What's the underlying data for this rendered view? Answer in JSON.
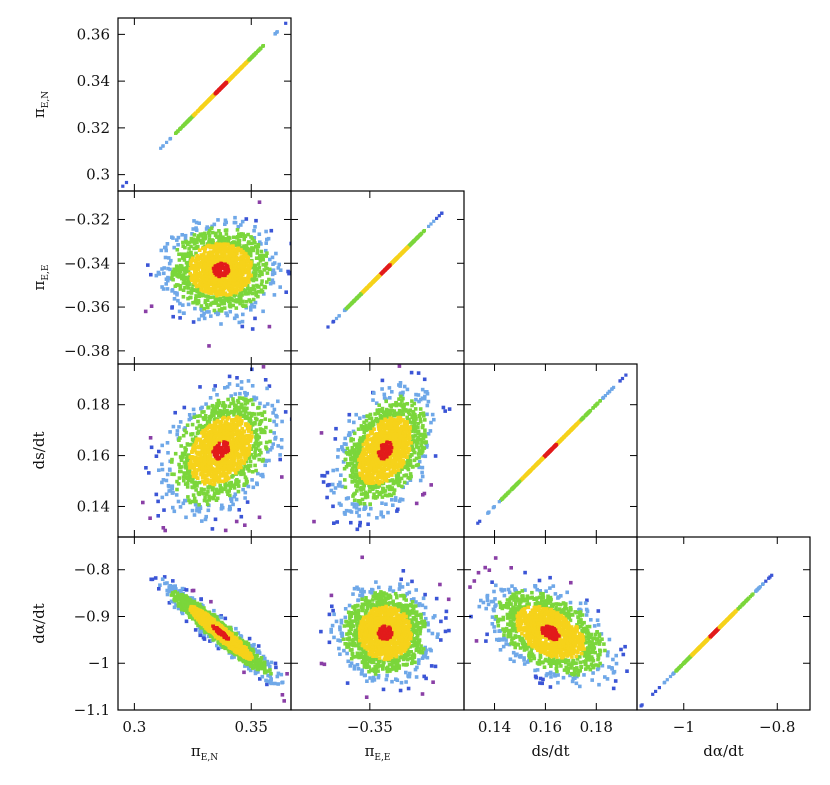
{
  "chart_data": {
    "type": "scatter",
    "title": "",
    "layout": "corner-plot",
    "grid": false,
    "legend": "none",
    "density_colors": [
      "#8a3fa6",
      "#3b55d6",
      "#6fa8e8",
      "#7bd63b",
      "#f6d21a",
      "#e21b1b"
    ],
    "parameters": [
      {
        "key": "piEN",
        "label_main": "π",
        "label_sub": "E,N",
        "range": [
          0.293,
          0.367
        ],
        "ticks": [
          {
            "v": 0.3,
            "label": "0.3"
          },
          {
            "v": 0.35,
            "label": "0.35"
          }
        ],
        "yticks": [
          {
            "v": 0.3,
            "label": "0.3"
          },
          {
            "v": 0.32,
            "label": "0.32"
          },
          {
            "v": 0.34,
            "label": "0.34"
          },
          {
            "v": 0.36,
            "label": "0.36"
          }
        ],
        "mean": 0.337,
        "sd": 0.01
      },
      {
        "key": "piEE",
        "label_main": "π",
        "label_sub": "E,E",
        "range": [
          -0.386,
          -0.307
        ],
        "ticks": [
          {
            "v": -0.35,
            "label": "−0.35"
          }
        ],
        "yticks": [
          {
            "v": -0.38,
            "label": "−0.38"
          },
          {
            "v": -0.36,
            "label": "−0.36"
          },
          {
            "v": -0.34,
            "label": "−0.34"
          },
          {
            "v": -0.32,
            "label": "−0.32"
          }
        ],
        "mean": -0.343,
        "sd": 0.009
      },
      {
        "key": "dsdt",
        "label_main": "ds/dt",
        "label_sub": "",
        "range": [
          0.128,
          0.196
        ],
        "ticks": [
          {
            "v": 0.14,
            "label": "0.14"
          },
          {
            "v": 0.16,
            "label": "0.16"
          },
          {
            "v": 0.18,
            "label": "0.18"
          }
        ],
        "yticks": [
          {
            "v": 0.14,
            "label": "0.14"
          },
          {
            "v": 0.16,
            "label": "0.16"
          },
          {
            "v": 0.18,
            "label": "0.18"
          }
        ],
        "mean": 0.162,
        "sd": 0.01
      },
      {
        "key": "dadt",
        "label_main": "dα/dt",
        "label_sub": "",
        "range": [
          -1.1,
          -0.73
        ],
        "ticks": [
          {
            "v": -1.0,
            "label": "−1"
          },
          {
            "v": -0.8,
            "label": "−0.8"
          }
        ],
        "yticks": [
          {
            "v": -1.1,
            "label": "−1.1"
          },
          {
            "v": -1.0,
            "label": "−1"
          },
          {
            "v": -0.9,
            "label": "−0.9"
          },
          {
            "v": -0.8,
            "label": "−0.8"
          }
        ],
        "mean": -0.935,
        "sd": 0.042
      }
    ],
    "correlations": [
      {
        "row": "piEE",
        "col": "piEN",
        "rho": 0.0
      },
      {
        "row": "dsdt",
        "col": "piEN",
        "rho": 0.35
      },
      {
        "row": "dsdt",
        "col": "piEE",
        "rho": 0.4
      },
      {
        "row": "dadt",
        "col": "piEN",
        "rho": -0.95
      },
      {
        "row": "dadt",
        "col": "piEE",
        "rho": 0.0
      },
      {
        "row": "dadt",
        "col": "dsdt",
        "rho": -0.45
      }
    ]
  }
}
